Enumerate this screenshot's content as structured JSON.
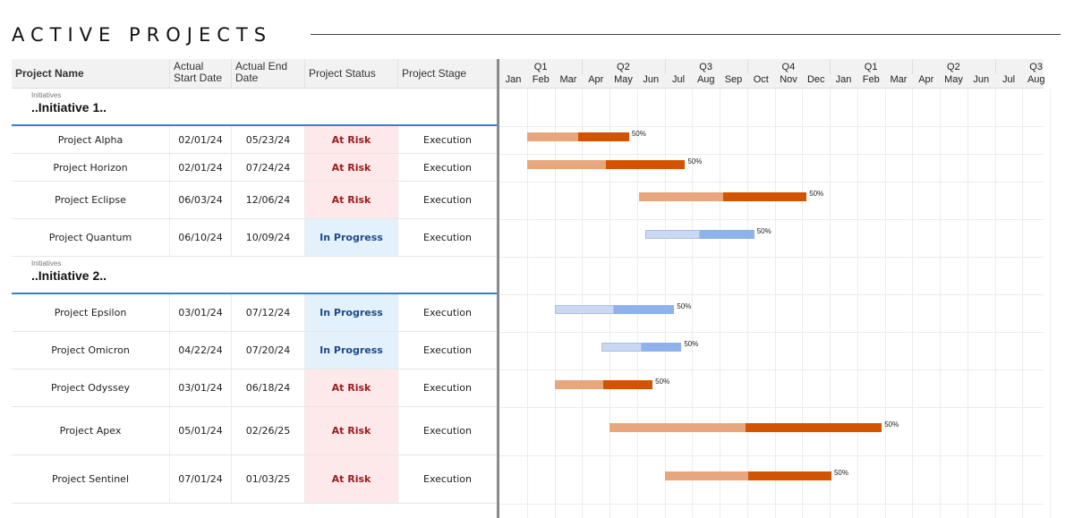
{
  "page": {
    "title": "ACTIVE PROJECTS"
  },
  "columns": {
    "name": "Project Name",
    "start": "Actual Start Date",
    "end": "Actual End Date",
    "status": "Project Status",
    "stage": "Project Stage"
  },
  "timeline": {
    "quarters": [
      "Q1",
      "Q2",
      "Q3",
      "Q4",
      "Q1",
      "Q2",
      "Q3"
    ],
    "months": [
      "Jan",
      "Feb",
      "Mar",
      "Apr",
      "May",
      "Jun",
      "Jul",
      "Aug",
      "Sep",
      "Oct",
      "Nov",
      "Dec",
      "Jan",
      "Feb",
      "Mar",
      "Apr",
      "May",
      "Jun",
      "Jul",
      "Aug"
    ]
  },
  "initiatives": [
    {
      "small_label": "Initiatives",
      "name": "..Initiative 1..",
      "projects": [
        {
          "name": "Project Alpha",
          "start": "02/01/24",
          "end": "05/23/24",
          "status": "At Risk",
          "stage": "Execution",
          "progress": "50%",
          "kind": "risk"
        },
        {
          "name": "Project Horizon",
          "start": "02/01/24",
          "end": "07/24/24",
          "status": "At Risk",
          "stage": "Execution",
          "progress": "50%",
          "kind": "risk"
        },
        {
          "name": "Project Eclipse",
          "start": "06/03/24",
          "end": "12/06/24",
          "status": "At Risk",
          "stage": "Execution",
          "progress": "50%",
          "kind": "risk"
        },
        {
          "name": "Project Quantum",
          "start": "06/10/24",
          "end": "10/09/24",
          "status": "In Progress",
          "stage": "Execution",
          "progress": "50%",
          "kind": "prog"
        }
      ]
    },
    {
      "small_label": "Initiatives",
      "name": "..Initiative 2..",
      "projects": [
        {
          "name": "Project Epsilon",
          "start": "03/01/24",
          "end": "07/12/24",
          "status": "In Progress",
          "stage": "Execution",
          "progress": "50%",
          "kind": "prog"
        },
        {
          "name": "Project Omicron",
          "start": "04/22/24",
          "end": "07/20/24",
          "status": "In Progress",
          "stage": "Execution",
          "progress": "50%",
          "kind": "prog"
        },
        {
          "name": "Project Odyssey",
          "start": "03/01/24",
          "end": "06/18/24",
          "status": "At Risk",
          "stage": "Execution",
          "progress": "50%",
          "kind": "risk"
        },
        {
          "name": "Project Apex",
          "start": "05/01/24",
          "end": "02/26/25",
          "status": "At Risk",
          "stage": "Execution",
          "progress": "50%",
          "kind": "risk"
        },
        {
          "name": "Project Sentinel",
          "start": "07/01/24",
          "end": "01/03/25",
          "status": "At Risk",
          "stage": "Execution",
          "progress": "50%",
          "kind": "risk"
        }
      ]
    }
  ],
  "colors": {
    "risk_light": "#e8a67c",
    "risk_dark": "#d35400",
    "prog_light": "#c9d9f3",
    "prog_dark": "#8db3ea",
    "accent": "#3b7bd0"
  }
}
